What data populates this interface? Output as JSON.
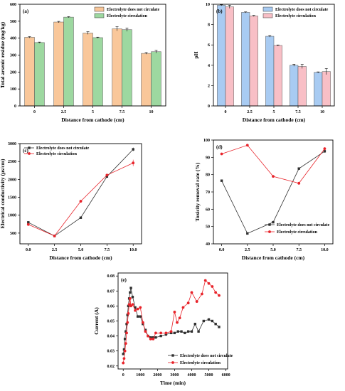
{
  "chart_data": [
    {
      "id": "a",
      "panel_label": "(a)",
      "type": "bar",
      "categories": [
        "0",
        "2.5",
        "5",
        "7.5",
        "10"
      ],
      "series": [
        {
          "name": "Electrolyte does not circulate",
          "color": "#f9c79a",
          "values": [
            405,
            495,
            430,
            455,
            310
          ],
          "errors": [
            4,
            4,
            8,
            12,
            5
          ]
        },
        {
          "name": "Electrolyte circulation",
          "color": "#9dd8a0",
          "values": [
            374,
            524,
            403,
            450,
            320
          ],
          "errors": [
            3,
            3,
            3,
            10,
            8
          ]
        }
      ],
      "xlabel": "Distance from cathode (cm)",
      "ylabel": "Total arsenic residue (mg/kg)",
      "ylim": [
        0,
        600
      ],
      "yticks": [
        0,
        100,
        200,
        300,
        400,
        500,
        600
      ],
      "legend": "top-right"
    },
    {
      "id": "b",
      "panel_label": "(b)",
      "type": "bar",
      "categories": [
        "0",
        "2.5",
        "5",
        "7.5",
        "10"
      ],
      "series": [
        {
          "name": "Electrolyte does not circulate",
          "color": "#a8cbf2",
          "values": [
            9.9,
            9.2,
            6.85,
            4.0,
            3.3
          ],
          "errors": [
            0.05,
            0.05,
            0.08,
            0.1,
            0.05
          ]
        },
        {
          "name": "Electrolyte circulation",
          "color": "#f8bfc6",
          "values": [
            9.75,
            8.85,
            5.95,
            3.88,
            3.38
          ],
          "errors": [
            0.15,
            0.05,
            0.05,
            0.2,
            0.3
          ]
        }
      ],
      "xlabel": "Distance from cathode (cm)",
      "ylabel": "pH",
      "ylim": [
        0,
        10
      ],
      "yticks": [
        0,
        2,
        4,
        6,
        8,
        10
      ],
      "legend": "top-right"
    },
    {
      "id": "c",
      "panel_label": "(c)",
      "type": "line",
      "x": [
        0,
        2.5,
        5,
        7.5,
        10
      ],
      "series": [
        {
          "name": "Electrolyte does not circulate",
          "color": "#303030",
          "marker": "square",
          "values": [
            800,
            420,
            930,
            2080,
            2840
          ],
          "errors": [
            0,
            0,
            0,
            0,
            50
          ]
        },
        {
          "name": "Electrolyte circulation",
          "color": "#e8232a",
          "marker": "circle",
          "values": [
            740,
            420,
            1390,
            2120,
            2460
          ],
          "errors": [
            0,
            0,
            0,
            0,
            90
          ]
        }
      ],
      "xlabel": "Distance from cathode (cm)",
      "ylabel": "Electrical conductivity (μs/cm)",
      "xlim": [
        -0.8,
        10.8
      ],
      "ylim": [
        200,
        3000
      ],
      "xticks": [
        "0.0",
        "2.5",
        "5.0",
        "7.5",
        "10.0"
      ],
      "yticks": [
        500,
        1000,
        1500,
        2000,
        2500,
        3000
      ],
      "legend": "top-left"
    },
    {
      "id": "d",
      "panel_label": "(d)",
      "type": "line",
      "x": [
        0,
        2.5,
        5,
        7.5,
        10
      ],
      "series": [
        {
          "name": "Electrolyte does not circulate",
          "color": "#303030",
          "marker": "square",
          "values": [
            76.5,
            46.0,
            52.5,
            83.5,
            93.5
          ],
          "errors": [
            0,
            0,
            0,
            0,
            0.8
          ]
        },
        {
          "name": "Electrolyte circulation",
          "color": "#e8232a",
          "marker": "circle",
          "values": [
            92.0,
            97.0,
            79.0,
            75.0,
            95.0
          ],
          "errors": [
            0,
            0,
            0,
            0,
            0.8
          ]
        }
      ],
      "xlabel": "Distance from cathode (cm)",
      "ylabel": "Toxicity removal rate (%)",
      "xlim": [
        -0.8,
        10.8
      ],
      "ylim": [
        40,
        100
      ],
      "xticks": [
        "0.0",
        "2.5",
        "5.0",
        "7.5",
        "10.0"
      ],
      "yticks": [
        40,
        50,
        60,
        70,
        80,
        90,
        100
      ],
      "legend": "bottom-right"
    },
    {
      "id": "e",
      "panel_label": "(e)",
      "type": "line",
      "series": [
        {
          "name": "Electrolyte does not circulate",
          "color": "#303030",
          "marker": "square",
          "x": [
            0,
            50,
            100,
            150,
            200,
            250,
            300,
            350,
            400,
            450,
            550,
            700,
            850,
            1000,
            1150,
            1300,
            1450,
            1600,
            1750,
            1900,
            2200,
            2500,
            2800,
            3000,
            3200,
            3400,
            3600,
            3800,
            4000,
            4200,
            4400,
            4700,
            5000,
            5200,
            5400,
            5600
          ],
          "values": [
            0.028,
            0.031,
            0.038,
            0.043,
            0.048,
            0.054,
            0.06,
            0.065,
            0.069,
            0.072,
            0.066,
            0.059,
            0.053,
            0.053,
            0.048,
            0.044,
            0.04,
            0.039,
            0.039,
            0.039,
            0.04,
            0.041,
            0.042,
            0.042,
            0.043,
            0.043,
            0.042,
            0.043,
            0.043,
            0.048,
            0.043,
            0.05,
            0.051,
            0.05,
            0.048,
            0.046
          ]
        },
        {
          "name": "Electrolyte circulation",
          "color": "#e8232a",
          "marker": "circle",
          "x": [
            0,
            50,
            100,
            150,
            200,
            250,
            300,
            350,
            400,
            450,
            550,
            700,
            850,
            1000,
            1150,
            1300,
            1450,
            1600,
            1750,
            1900,
            2200,
            2500,
            2800,
            3000,
            3150,
            3300,
            3500,
            3800,
            4000,
            4300,
            4600,
            4800,
            5000,
            5200,
            5400,
            5600
          ],
          "values": [
            0.022,
            0.025,
            0.03,
            0.035,
            0.042,
            0.049,
            0.055,
            0.061,
            0.065,
            0.06,
            0.061,
            0.057,
            0.058,
            0.059,
            0.049,
            0.043,
            0.04,
            0.038,
            0.038,
            0.042,
            0.042,
            0.042,
            0.043,
            0.056,
            0.049,
            0.052,
            0.059,
            0.062,
            0.069,
            0.063,
            0.068,
            0.077,
            0.075,
            0.073,
            0.069,
            0.067
          ]
        }
      ],
      "xlabel": "Time (min)",
      "ylabel": "Current (A)",
      "xlim": [
        -300,
        6100
      ],
      "ylim": [
        0.018,
        0.082
      ],
      "xticks": [
        0,
        1000,
        2000,
        3000,
        4000,
        5000,
        6000
      ],
      "yticks": [
        0.02,
        0.03,
        0.04,
        0.05,
        0.06,
        0.07,
        0.08
      ],
      "legend": "bottom-right"
    }
  ]
}
